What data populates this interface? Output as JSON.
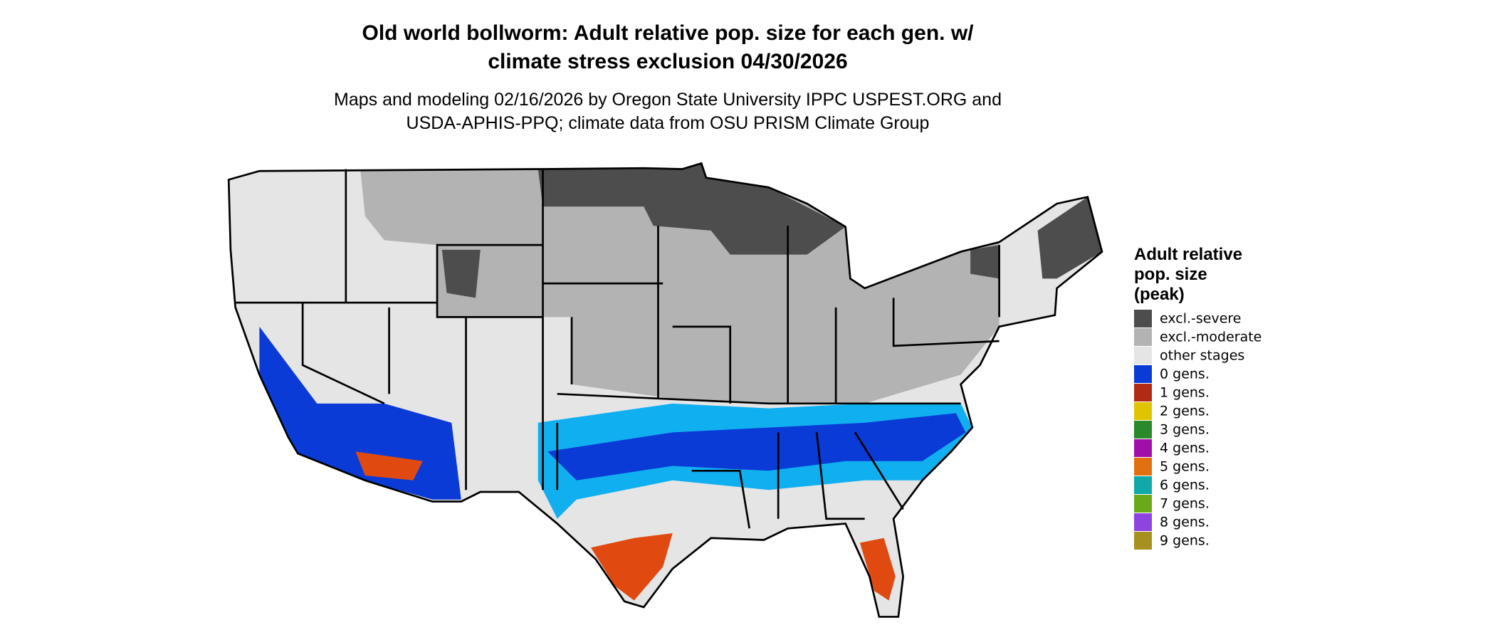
{
  "header": {
    "title": [
      "Old world bollworm: Adult relative pop. size for each gen. w/",
      "climate stress exclusion 04/30/2026"
    ],
    "subtitle": [
      "Maps and modeling 02/16/2026 by Oregon State University IPPC USPEST.ORG and",
      "USDA-APHIS-PPQ; climate data from OSU PRISM Climate Group"
    ]
  },
  "legend": {
    "title": [
      "Adult relative",
      "pop. size",
      "(peak)"
    ],
    "items": [
      {
        "label": "excl.-severe",
        "color": "#4d4d4d"
      },
      {
        "label": "excl.-moderate",
        "color": "#b3b3b3"
      },
      {
        "label": "other stages",
        "color": "#e5e5e5"
      },
      {
        "label": "0 gens.",
        "color": "#0a3bd6"
      },
      {
        "label": "1 gens.",
        "color": "#b02a14"
      },
      {
        "label": "2 gens.",
        "color": "#e0c400"
      },
      {
        "label": "3 gens.",
        "color": "#2a8a2a"
      },
      {
        "label": "4 gens.",
        "color": "#a010a8"
      },
      {
        "label": "5 gens.",
        "color": "#e07010"
      },
      {
        "label": "6 gens.",
        "color": "#10a8a8"
      },
      {
        "label": "7 gens.",
        "color": "#6aaa1a"
      },
      {
        "label": "8 gens.",
        "color": "#8e44e0"
      },
      {
        "label": "9 gens.",
        "color": "#a89020"
      }
    ]
  }
}
